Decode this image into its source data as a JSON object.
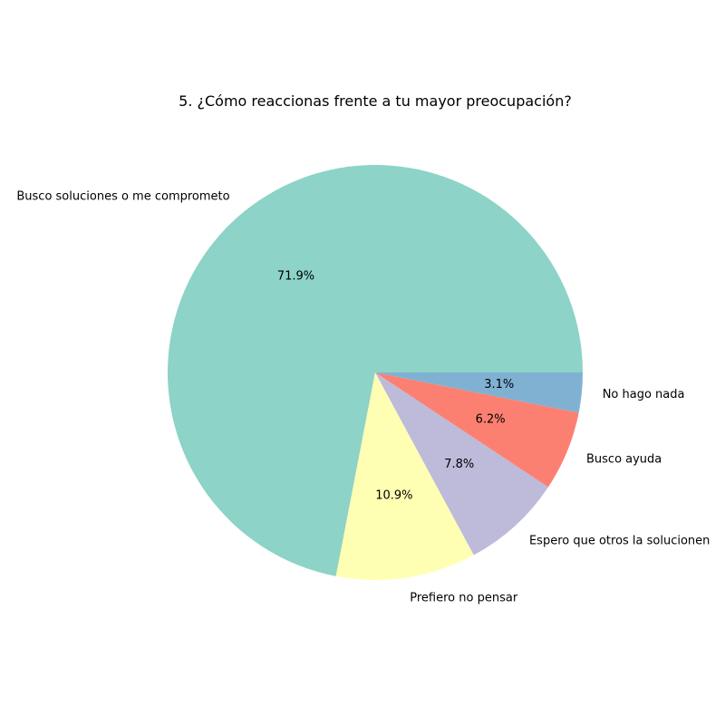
{
  "chart_data": {
    "type": "pie",
    "title": "5. ¿Cómo reaccionas frente a tu mayor preocupación?",
    "slices": [
      {
        "label": "Busco soluciones o me comprometo",
        "value": 71.9,
        "pct_label": "71.9%",
        "color": "#8dd3c7"
      },
      {
        "label": "Prefiero no pensar",
        "value": 10.9,
        "pct_label": "10.9%",
        "color": "#ffffb3"
      },
      {
        "label": "Espero que otros la solucionen",
        "value": 7.8,
        "pct_label": "7.8%",
        "color": "#bebada"
      },
      {
        "label": "Busco ayuda",
        "value": 6.2,
        "pct_label": "6.2%",
        "color": "#fb8072"
      },
      {
        "label": "No hago nada",
        "value": 3.1,
        "pct_label": "3.1%",
        "color": "#80b1d3"
      }
    ],
    "start_angle_deg": 0,
    "direction": "counterclockwise",
    "legend": "none"
  }
}
